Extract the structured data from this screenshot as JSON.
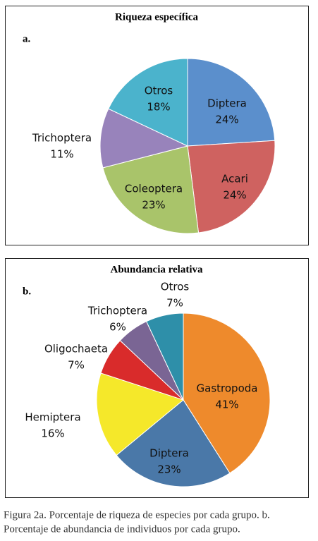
{
  "chart_data": [
    {
      "type": "pie",
      "title": "Riqueza específica",
      "panel_label": "a.",
      "categories": [
        "Diptera",
        "Acari",
        "Coleoptera",
        "Trichoptera",
        "Otros"
      ],
      "values": [
        24,
        24,
        23,
        11,
        18
      ],
      "value_labels": [
        "24%",
        "24%",
        "23%",
        "11%",
        "18%"
      ],
      "colors": [
        "#5b8fcc",
        "#cf6260",
        "#a9c46a",
        "#9883bb",
        "#4bb3cc"
      ]
    },
    {
      "type": "pie",
      "title": "Abundancia relativa",
      "panel_label": "b.",
      "categories": [
        "Gastropoda",
        "Diptera",
        "Hemiptera",
        "Oligochaeta",
        "Trichoptera",
        "Otros"
      ],
      "values": [
        41,
        23,
        16,
        7,
        6,
        7
      ],
      "value_labels": [
        "41%",
        "23%",
        "16%",
        "7%",
        "6%",
        "7%"
      ],
      "colors": [
        "#ee8a2c",
        "#4a78a8",
        "#f5e82a",
        "#d92b2b",
        "#7a6594",
        "#2e8fa9"
      ]
    }
  ],
  "caption": {
    "lines": [
      "Figura 2a. Porcentaje de riqueza de especies por cada grupo. b.",
      "Porcentaje de abundancia de individuos por cada grupo."
    ]
  }
}
